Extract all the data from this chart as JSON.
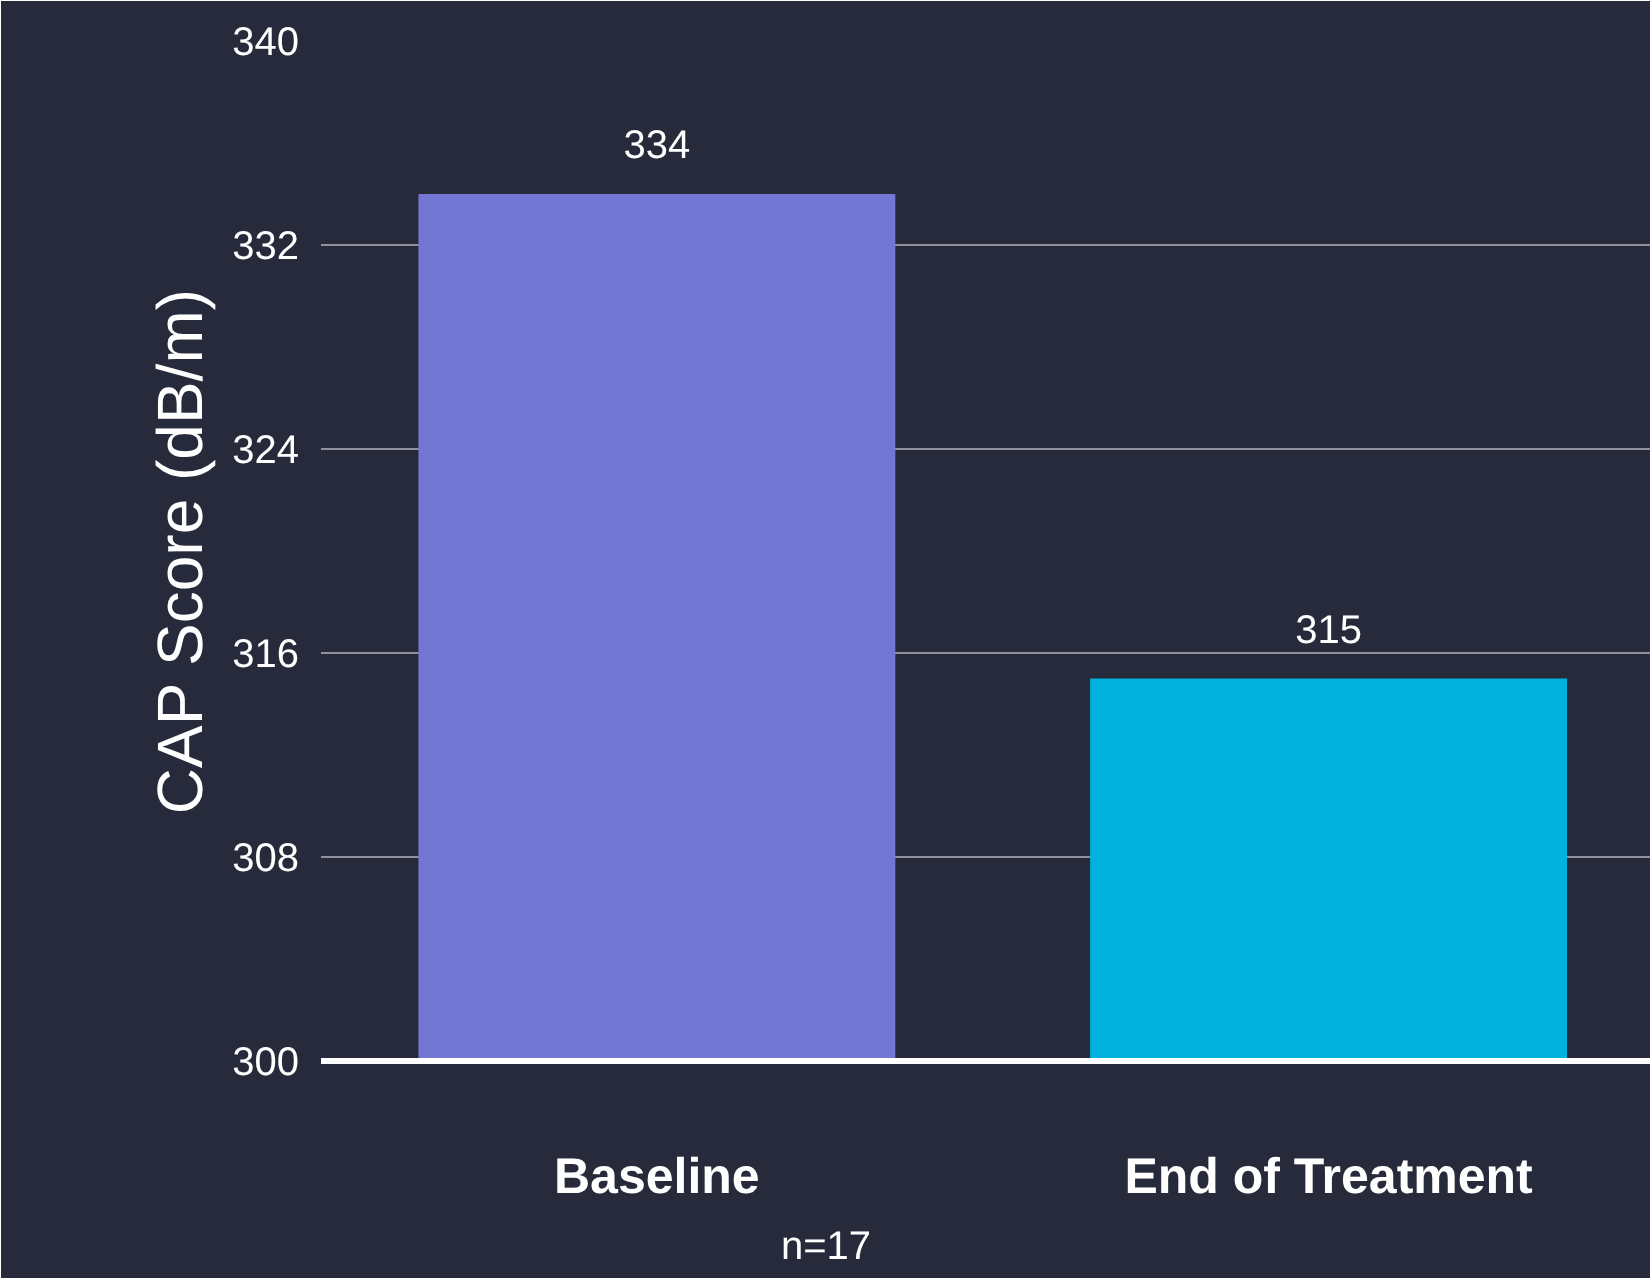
{
  "chart_data": {
    "type": "bar",
    "ylabel": "CAP Score (dB/m)",
    "categories": [
      "Baseline",
      "End of Treatment"
    ],
    "values": [
      334,
      315
    ],
    "colors": [
      "#7476d4",
      "#00b2dc"
    ],
    "ylim": [
      300,
      340
    ],
    "yticks": [
      300,
      308,
      316,
      324,
      332,
      340
    ],
    "grid": "y",
    "data_labels": true,
    "annotations": [
      "n=17"
    ]
  }
}
